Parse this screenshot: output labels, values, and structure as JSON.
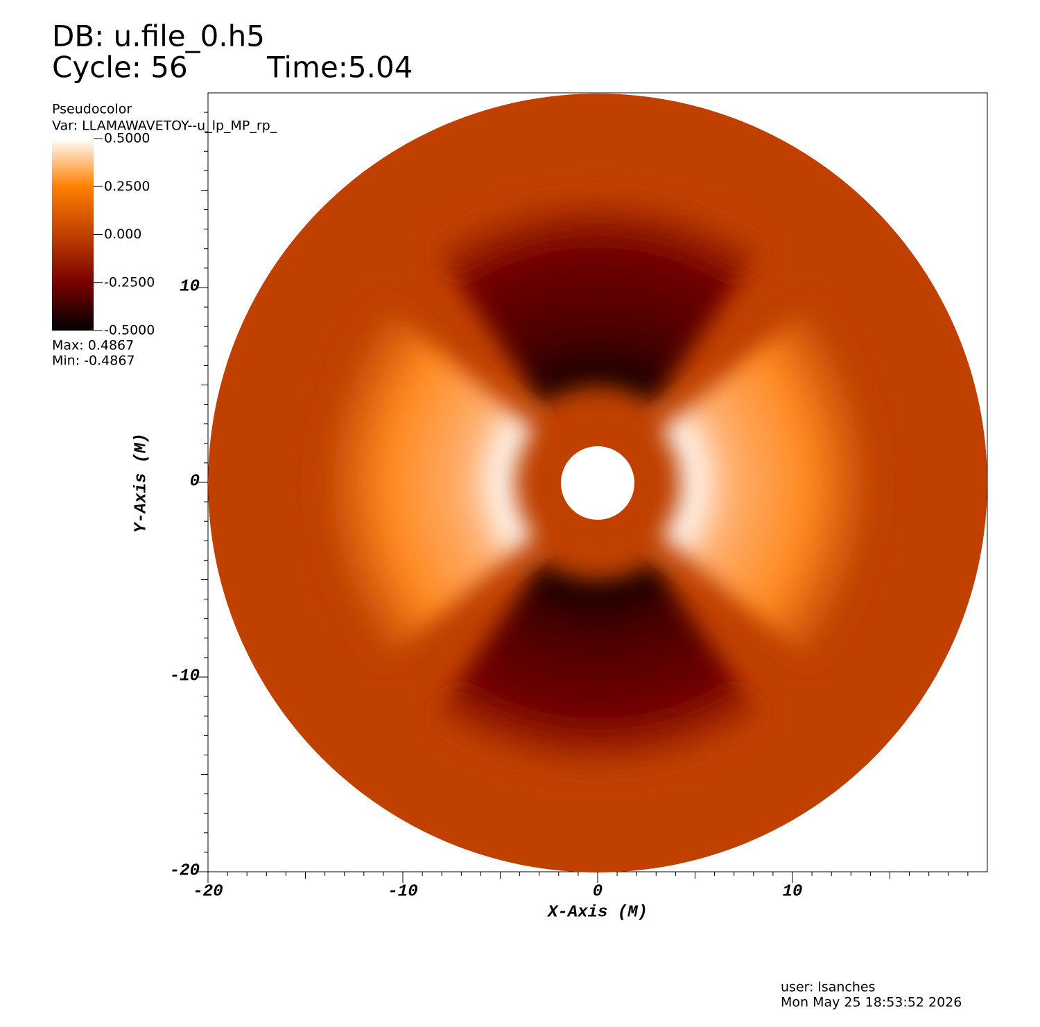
{
  "chart_data": {
    "type": "pseudocolor",
    "title": "DB: u.file_0.h5",
    "cycle": "Cycle: 56",
    "time": "Time:5.04",
    "legend_title": "Pseudocolor",
    "variable": "Var: LLAMAWAVETOY--u_lp_MP_rp_",
    "colorbar_lim": [
      -0.5,
      0.5
    ],
    "colorbar_ticks": [
      {
        "value": 0.5,
        "label": "0.5000"
      },
      {
        "value": 0.25,
        "label": "0.2500"
      },
      {
        "value": 0,
        "label": "0.000"
      },
      {
        "value": -0.25,
        "label": "-0.2500"
      },
      {
        "value": -0.5,
        "label": "-0.5000"
      }
    ],
    "colormap": [
      "#000000",
      "#7a0000",
      "#c04000",
      "#ff8000",
      "#ffffff"
    ],
    "max_label": "Max:  0.4867",
    "min_label": "Min: -0.4867",
    "x_label": "X-Axis (M)",
    "y_label": "Y-Axis (M)",
    "xlim": [
      -20,
      20
    ],
    "ylim": [
      -20,
      20
    ],
    "xticks": [
      -20,
      -10,
      0,
      10
    ],
    "yticks": [
      -20,
      -10,
      0,
      10
    ],
    "user": "user: lsanches",
    "date": "Mon May 25 18:53:52 2026"
  }
}
